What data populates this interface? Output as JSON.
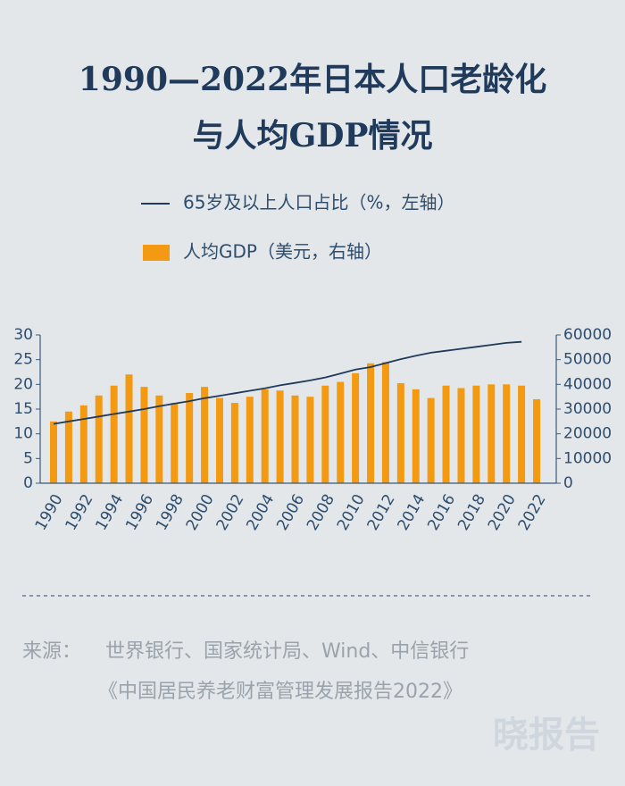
{
  "chart_data": {
    "type": "combo",
    "title": [
      "1990—2022年日本人口老龄化",
      "与人均GDP情况"
    ],
    "categories": [
      "1990",
      null,
      "1992",
      null,
      "1994",
      null,
      "1996",
      null,
      "1998",
      null,
      "2000",
      null,
      "2002",
      null,
      "2004",
      null,
      "2006",
      null,
      "2008",
      null,
      "2010",
      null,
      "2012",
      null,
      "2014",
      null,
      "2016",
      null,
      "2018",
      null,
      "2020",
      null,
      "2022"
    ],
    "series": [
      {
        "name": "65岁及以上人口占比（%，左轴）",
        "type": "line",
        "axis": "y",
        "color": "#1f3a5a",
        "values": [
          12,
          12.5,
          13,
          13.5,
          14,
          14.5,
          15,
          15.6,
          16.1,
          16.6,
          17.2,
          17.7,
          18.2,
          18.7,
          19.2,
          19.8,
          20.3,
          20.8,
          21.4,
          22.2,
          23,
          23.5,
          24.3,
          25.1,
          25.8,
          26.4,
          26.8,
          27.2,
          27.6,
          28,
          28.4,
          28.6,
          null
        ]
      },
      {
        "name": "人均GDP（美元，右轴）",
        "type": "bar",
        "axis": "y2",
        "color": "#f39a12",
        "values": [
          25000,
          29000,
          31500,
          35500,
          39500,
          44000,
          39000,
          35500,
          32500,
          36500,
          39000,
          34500,
          32500,
          35000,
          38000,
          37500,
          35500,
          35000,
          39500,
          41000,
          44500,
          48500,
          49000,
          40500,
          38000,
          34500,
          39500,
          38500,
          39500,
          40000,
          40000,
          39500,
          34000
        ]
      }
    ],
    "ylim": [
      0,
      30
    ],
    "yticks": [
      0,
      5,
      10,
      15,
      20,
      25,
      30
    ],
    "y2lim": [
      0,
      60000
    ],
    "y2ticks": [
      0,
      10000,
      20000,
      30000,
      40000,
      50000,
      60000
    ],
    "source": [
      "来源：",
      "世界银行、国家统计局、Wind、中信银行",
      "《中国居民养老财富管理发展报告2022》"
    ],
    "watermark": "晓报告"
  }
}
